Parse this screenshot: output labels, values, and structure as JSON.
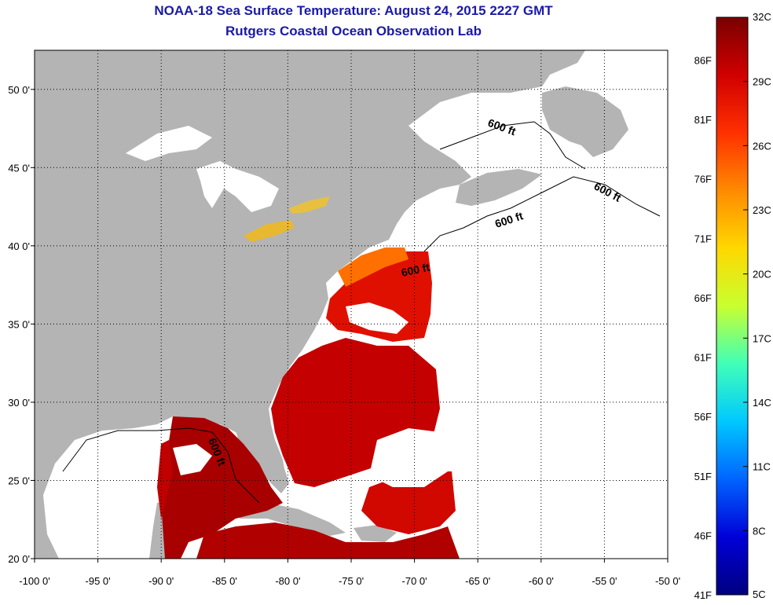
{
  "title": "NOAA-18 Sea Surface Temperature:  August 24, 2015 2227 GMT",
  "subtitle": "Rutgers Coastal Ocean Observation Lab",
  "map": {
    "lon_range": [
      -100,
      -50
    ],
    "lat_range": [
      20,
      52.5
    ],
    "x_ticks": [
      "-100 0'",
      "-95 0'",
      "-90 0'",
      "-85 0'",
      "-80 0'",
      "-75 0'",
      "-70 0'",
      "-65 0'",
      "-60 0'",
      "-55 0'",
      "-50 0'"
    ],
    "y_ticks": [
      "50 0'",
      "45 0'",
      "40 0'",
      "35 0'",
      "30 0'",
      "25 0'",
      "20 0'"
    ],
    "land_color": "#b4b4b4",
    "no_data_color": "#ffffff",
    "grid": "dotted",
    "contour_labels": [
      "600 ft",
      "600 ft",
      "600 ft",
      "600 ft",
      "600 ft"
    ]
  },
  "colorbar": {
    "celsius_labels": [
      "32C",
      "29C",
      "26C",
      "23C",
      "20C",
      "17C",
      "14C",
      "11C",
      "8C",
      "5C"
    ],
    "fahrenheit_labels": [
      "86F",
      "81F",
      "76F",
      "71F",
      "66F",
      "61F",
      "56F",
      "51F",
      "46F",
      "41F"
    ],
    "colors": [
      "#7a0000",
      "#d00000",
      "#ff3000",
      "#ff8a00",
      "#ffd800",
      "#c8ff30",
      "#40ffb8",
      "#00c8ff",
      "#0064ff",
      "#0000d8",
      "#000080"
    ]
  }
}
